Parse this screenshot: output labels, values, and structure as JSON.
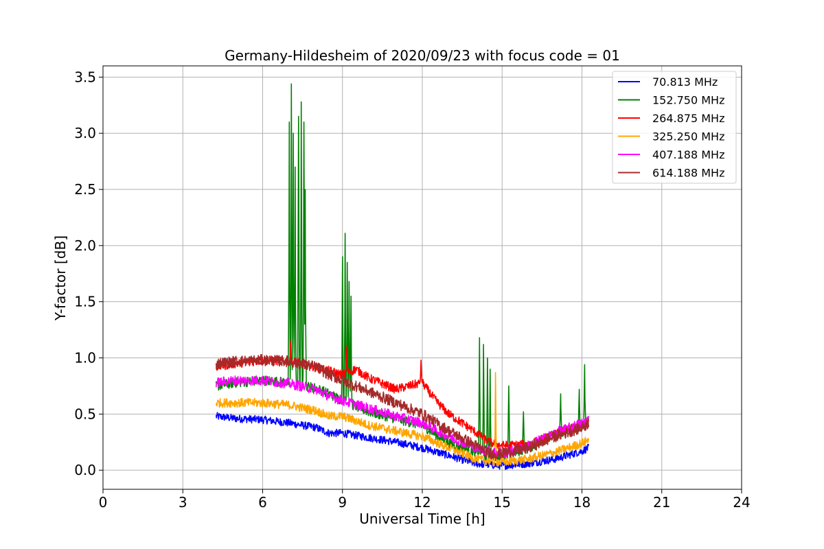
{
  "chart_data": {
    "type": "line",
    "title": "Germany-Hildesheim of 2020/09/23 with focus code = 01",
    "xlabel": "Universal Time [h]",
    "ylabel": "Y-factor [dB]",
    "xlim": [
      0,
      24
    ],
    "ylim": [
      -0.17,
      3.6
    ],
    "xticks": [
      0,
      3,
      6,
      9,
      12,
      15,
      18,
      21,
      24
    ],
    "yticks": [
      0.0,
      0.5,
      1.0,
      1.5,
      2.0,
      2.5,
      3.0,
      3.5
    ],
    "xtick_labels": [
      "0",
      "3",
      "6",
      "9",
      "12",
      "15",
      "18",
      "21",
      "24"
    ],
    "ytick_labels": [
      "0.0",
      "0.5",
      "1.0",
      "1.5",
      "2.0",
      "2.5",
      "3.0",
      "3.5"
    ],
    "grid": true,
    "legend_position": "top-right",
    "series": [
      {
        "name": "70.813 MHz",
        "color": "#0000ff",
        "x": [
          4.25,
          5,
          6,
          7,
          8,
          8.5,
          9,
          10,
          11,
          12,
          13,
          14,
          14.5,
          15,
          16,
          17,
          18,
          18.25
        ],
        "y": [
          0.48,
          0.46,
          0.45,
          0.42,
          0.38,
          0.33,
          0.33,
          0.29,
          0.25,
          0.2,
          0.13,
          0.06,
          0.05,
          0.04,
          0.06,
          0.1,
          0.17,
          0.2
        ],
        "noise": 0.035
      },
      {
        "name": "152.750 MHz",
        "color": "#008000",
        "x": [
          4.25,
          5,
          6,
          7,
          8,
          8.5,
          9,
          10,
          11,
          12,
          13,
          14,
          14.5,
          15,
          16,
          17,
          18,
          18.25
        ],
        "y": [
          0.75,
          0.78,
          0.8,
          0.78,
          0.73,
          0.68,
          0.62,
          0.52,
          0.46,
          0.4,
          0.24,
          0.16,
          0.12,
          0.12,
          0.2,
          0.32,
          0.4,
          0.45
        ],
        "noise": 0.045,
        "spikes": [
          {
            "x": 7.0,
            "y": 3.1
          },
          {
            "x": 7.08,
            "y": 3.44
          },
          {
            "x": 7.15,
            "y": 3.0
          },
          {
            "x": 7.22,
            "y": 2.7
          },
          {
            "x": 7.35,
            "y": 3.15
          },
          {
            "x": 7.45,
            "y": 3.28
          },
          {
            "x": 7.55,
            "y": 3.1
          },
          {
            "x": 7.6,
            "y": 2.5
          },
          {
            "x": 9.0,
            "y": 1.9
          },
          {
            "x": 9.1,
            "y": 2.11
          },
          {
            "x": 9.18,
            "y": 1.85
          },
          {
            "x": 9.25,
            "y": 1.68
          },
          {
            "x": 9.32,
            "y": 1.55
          },
          {
            "x": 14.15,
            "y": 1.18
          },
          {
            "x": 14.3,
            "y": 1.12
          },
          {
            "x": 14.45,
            "y": 1.0
          },
          {
            "x": 14.55,
            "y": 0.9
          },
          {
            "x": 15.25,
            "y": 0.75
          },
          {
            "x": 15.8,
            "y": 0.52
          },
          {
            "x": 17.2,
            "y": 0.68
          },
          {
            "x": 17.9,
            "y": 0.72
          },
          {
            "x": 18.1,
            "y": 0.94
          }
        ]
      },
      {
        "name": "264.875 MHz",
        "color": "#ff0000",
        "x": [
          4.25,
          5,
          6,
          7,
          8,
          9,
          9.5,
          10,
          11,
          12,
          12.5,
          13,
          14,
          14.5,
          15,
          16,
          17,
          18,
          18.25
        ],
        "y": [
          0.92,
          0.95,
          0.98,
          0.97,
          0.92,
          0.85,
          0.9,
          0.82,
          0.72,
          0.78,
          0.62,
          0.5,
          0.34,
          0.25,
          0.22,
          0.23,
          0.32,
          0.4,
          0.45
        ],
        "noise": 0.04,
        "spikes": [
          {
            "x": 7.05,
            "y": 1.15
          },
          {
            "x": 9.15,
            "y": 1.1
          },
          {
            "x": 11.95,
            "y": 0.98
          }
        ]
      },
      {
        "name": "325.250 MHz",
        "color": "#ffa500",
        "x": [
          4.25,
          5,
          6,
          7,
          8,
          8.5,
          9,
          10,
          11,
          12,
          13,
          14,
          14.5,
          15,
          16,
          17,
          18,
          18.25
        ],
        "y": [
          0.6,
          0.6,
          0.6,
          0.58,
          0.53,
          0.48,
          0.48,
          0.4,
          0.35,
          0.3,
          0.2,
          0.1,
          0.08,
          0.07,
          0.1,
          0.16,
          0.24,
          0.27
        ],
        "noise": 0.04,
        "spikes": [
          {
            "x": 14.75,
            "y": 0.87
          }
        ]
      },
      {
        "name": "407.188 MHz",
        "color": "#ff00ff",
        "x": [
          4.25,
          5,
          6,
          7,
          8,
          8.5,
          9,
          10,
          11,
          12,
          13,
          14,
          14.5,
          15,
          16,
          17,
          18,
          18.25
        ],
        "y": [
          0.78,
          0.8,
          0.8,
          0.77,
          0.72,
          0.66,
          0.62,
          0.55,
          0.48,
          0.42,
          0.3,
          0.2,
          0.17,
          0.15,
          0.22,
          0.33,
          0.42,
          0.45
        ],
        "noise": 0.045
      },
      {
        "name": "614.188 MHz",
        "color": "#a52a2a",
        "x": [
          4.25,
          5,
          6,
          7,
          8,
          8.5,
          9,
          10,
          11,
          12,
          13,
          14,
          14.5,
          15,
          16,
          17,
          18,
          18.25
        ],
        "y": [
          0.95,
          0.97,
          0.98,
          0.97,
          0.92,
          0.85,
          0.8,
          0.7,
          0.6,
          0.5,
          0.35,
          0.22,
          0.15,
          0.15,
          0.2,
          0.3,
          0.38,
          0.42
        ],
        "noise": 0.05
      }
    ]
  }
}
